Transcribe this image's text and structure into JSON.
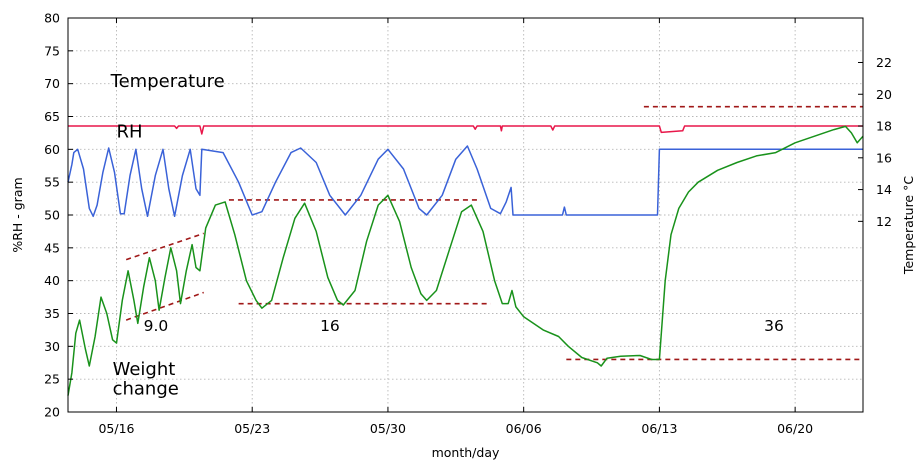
{
  "chart_data": {
    "type": "line",
    "xlabel": "month/day",
    "ylabel_left": "%RH - gram",
    "ylabel_right": "Temperature °C",
    "x_range_day": [
      13.5,
      54.5
    ],
    "x_ticks": [
      {
        "day": 16,
        "label": "05/16"
      },
      {
        "day": 23,
        "label": "05/23"
      },
      {
        "day": 30,
        "label": "05/30"
      },
      {
        "day": 37,
        "label": "06/06"
      },
      {
        "day": 44,
        "label": "06/13"
      },
      {
        "day": 51,
        "label": "06/20"
      }
    ],
    "ylim_left": [
      20,
      80
    ],
    "y_ticks_left": [
      20,
      25,
      30,
      35,
      40,
      45,
      50,
      55,
      60,
      65,
      70,
      75,
      80
    ],
    "ylim_right": [
      0,
      24.8
    ],
    "y_ticks_right": [
      12,
      14,
      16,
      18,
      20,
      22
    ],
    "grid": true,
    "annotations": [
      {
        "text": "Temperature",
        "day": 15.7,
        "y": 69.5
      },
      {
        "text": "RH",
        "day": 16.0,
        "y": 61.8
      },
      {
        "text": "Weight",
        "day": 15.8,
        "y": 25.6
      },
      {
        "text": "change",
        "day": 15.8,
        "y": 22.7
      },
      {
        "text": "9.0",
        "day": 17.4,
        "y": 32.3
      },
      {
        "text": "16",
        "day": 26.5,
        "y": 32.3
      },
      {
        "text": "36",
        "day": 49.4,
        "y": 32.3
      }
    ],
    "reference_lines": [
      {
        "name": "upper envelope",
        "points": [
          [
            16.5,
            43.2
          ],
          [
            20.5,
            47.2
          ]
        ]
      },
      {
        "name": "lower envelope",
        "points": [
          [
            16.5,
            34.0
          ],
          [
            20.5,
            38.2
          ]
        ]
      },
      {
        "name": "RH peak level",
        "points": [
          [
            21.8,
            52.3
          ],
          [
            34.8,
            52.3
          ]
        ]
      },
      {
        "name": "weight trough level",
        "points": [
          [
            22.3,
            36.5
          ],
          [
            35.3,
            36.5
          ]
        ]
      },
      {
        "name": "high temperature level",
        "points": [
          [
            43.2,
            66.5
          ],
          [
            54.5,
            66.5
          ]
        ]
      },
      {
        "name": "low weight level",
        "points": [
          [
            39.2,
            28.0
          ],
          [
            54.5,
            28.0
          ]
        ]
      }
    ],
    "series": [
      {
        "name": "Temperature",
        "axis": "right",
        "color": "#e8174a",
        "points": [
          [
            13.5,
            18.0
          ],
          [
            19.0,
            18.0
          ],
          [
            19.1,
            17.85
          ],
          [
            19.2,
            18.0
          ],
          [
            20.3,
            18.0
          ],
          [
            20.4,
            17.5
          ],
          [
            20.5,
            18.0
          ],
          [
            34.4,
            18.0
          ],
          [
            34.5,
            17.8
          ],
          [
            34.6,
            18.0
          ],
          [
            35.8,
            18.0
          ],
          [
            35.85,
            17.7
          ],
          [
            35.9,
            18.0
          ],
          [
            38.4,
            18.0
          ],
          [
            38.5,
            17.75
          ],
          [
            38.6,
            18.0
          ],
          [
            44.0,
            18.0
          ],
          [
            44.1,
            17.6
          ],
          [
            45.2,
            17.7
          ],
          [
            45.3,
            18.0
          ],
          [
            54.5,
            18.0
          ]
        ]
      },
      {
        "name": "RH",
        "axis": "left",
        "color": "#3a62d8",
        "points": [
          [
            13.5,
            55.0
          ],
          [
            13.7,
            57.7
          ],
          [
            13.8,
            59.5
          ],
          [
            14.0,
            60.0
          ],
          [
            14.3,
            57.0
          ],
          [
            14.6,
            51.0
          ],
          [
            14.8,
            49.8
          ],
          [
            15.0,
            51.5
          ],
          [
            15.3,
            56.5
          ],
          [
            15.6,
            60.2
          ],
          [
            15.9,
            56.5
          ],
          [
            16.2,
            50.2
          ],
          [
            16.4,
            50.2
          ],
          [
            16.7,
            56.0
          ],
          [
            17.0,
            60.0
          ],
          [
            17.3,
            54.0
          ],
          [
            17.6,
            49.8
          ],
          [
            18.0,
            56.0
          ],
          [
            18.4,
            60.0
          ],
          [
            18.7,
            54.0
          ],
          [
            19.0,
            49.8
          ],
          [
            19.4,
            56.0
          ],
          [
            19.8,
            60.0
          ],
          [
            20.1,
            54.0
          ],
          [
            20.3,
            53.0
          ],
          [
            20.4,
            60.0
          ],
          [
            21.5,
            59.5
          ],
          [
            22.3,
            55.0
          ],
          [
            23.0,
            50.0
          ],
          [
            23.5,
            50.5
          ],
          [
            24.2,
            55.0
          ],
          [
            25.0,
            59.5
          ],
          [
            25.5,
            60.2
          ],
          [
            26.3,
            58.0
          ],
          [
            27.0,
            53.0
          ],
          [
            27.8,
            50.0
          ],
          [
            28.6,
            53.0
          ],
          [
            29.5,
            58.5
          ],
          [
            30.0,
            60.0
          ],
          [
            30.8,
            57.0
          ],
          [
            31.6,
            51.0
          ],
          [
            32.0,
            50.0
          ],
          [
            32.8,
            53.0
          ],
          [
            33.5,
            58.5
          ],
          [
            34.1,
            60.5
          ],
          [
            34.6,
            57.0
          ],
          [
            35.3,
            51.0
          ],
          [
            35.8,
            50.2
          ],
          [
            36.1,
            52.0
          ],
          [
            36.35,
            54.2
          ],
          [
            36.45,
            50.0
          ],
          [
            36.6,
            50.0
          ],
          [
            39.0,
            50.0
          ],
          [
            39.1,
            51.2
          ],
          [
            39.2,
            50.0
          ],
          [
            43.9,
            50.0
          ],
          [
            44.0,
            60.0
          ],
          [
            54.5,
            60.0
          ]
        ]
      },
      {
        "name": "Weight change",
        "axis": "left",
        "color": "#19921b",
        "points": [
          [
            13.5,
            22.5
          ],
          [
            13.7,
            26.0
          ],
          [
            13.9,
            32.0
          ],
          [
            14.1,
            34.0
          ],
          [
            14.4,
            29.5
          ],
          [
            14.6,
            27.0
          ],
          [
            14.9,
            31.5
          ],
          [
            15.2,
            37.5
          ],
          [
            15.5,
            35.0
          ],
          [
            15.8,
            31.0
          ],
          [
            16.0,
            30.5
          ],
          [
            16.3,
            37.0
          ],
          [
            16.6,
            41.5
          ],
          [
            16.9,
            37.0
          ],
          [
            17.1,
            33.5
          ],
          [
            17.4,
            39.0
          ],
          [
            17.7,
            43.5
          ],
          [
            18.0,
            40.0
          ],
          [
            18.2,
            35.5
          ],
          [
            18.5,
            40.5
          ],
          [
            18.8,
            45.0
          ],
          [
            19.1,
            41.5
          ],
          [
            19.3,
            36.5
          ],
          [
            19.6,
            41.5
          ],
          [
            19.9,
            45.5
          ],
          [
            20.1,
            42.0
          ],
          [
            20.3,
            41.5
          ],
          [
            20.6,
            48.0
          ],
          [
            21.1,
            51.5
          ],
          [
            21.6,
            52.0
          ],
          [
            22.1,
            47.0
          ],
          [
            22.7,
            40.0
          ],
          [
            23.2,
            37.0
          ],
          [
            23.5,
            35.8
          ],
          [
            24.0,
            37.0
          ],
          [
            24.6,
            43.5
          ],
          [
            25.2,
            49.5
          ],
          [
            25.7,
            51.8
          ],
          [
            26.3,
            47.5
          ],
          [
            26.9,
            40.5
          ],
          [
            27.4,
            37.0
          ],
          [
            27.7,
            36.3
          ],
          [
            28.3,
            38.5
          ],
          [
            28.9,
            46.0
          ],
          [
            29.5,
            51.5
          ],
          [
            30.0,
            53.0
          ],
          [
            30.6,
            49.0
          ],
          [
            31.2,
            42.0
          ],
          [
            31.7,
            38.0
          ],
          [
            32.0,
            37.0
          ],
          [
            32.5,
            38.5
          ],
          [
            33.2,
            45.0
          ],
          [
            33.8,
            50.5
          ],
          [
            34.3,
            51.5
          ],
          [
            34.9,
            47.5
          ],
          [
            35.5,
            40.0
          ],
          [
            35.9,
            36.5
          ],
          [
            36.2,
            36.5
          ],
          [
            36.4,
            38.5
          ],
          [
            36.6,
            36.0
          ],
          [
            37.0,
            34.5
          ],
          [
            38.0,
            32.5
          ],
          [
            38.8,
            31.5
          ],
          [
            39.3,
            30.0
          ],
          [
            40.0,
            28.3
          ],
          [
            40.8,
            27.5
          ],
          [
            41.0,
            27.0
          ],
          [
            41.3,
            28.2
          ],
          [
            42.0,
            28.5
          ],
          [
            43.0,
            28.6
          ],
          [
            43.6,
            28.0
          ],
          [
            44.0,
            28.0
          ],
          [
            44.3,
            40.0
          ],
          [
            44.6,
            47.0
          ],
          [
            45.0,
            51.0
          ],
          [
            45.5,
            53.5
          ],
          [
            46.0,
            55.0
          ],
          [
            47.0,
            56.8
          ],
          [
            48.0,
            58.0
          ],
          [
            49.0,
            59.0
          ],
          [
            50.0,
            59.5
          ],
          [
            51.0,
            61.0
          ],
          [
            52.0,
            62.0
          ],
          [
            53.0,
            63.0
          ],
          [
            53.6,
            63.5
          ],
          [
            53.9,
            62.5
          ],
          [
            54.2,
            61.0
          ],
          [
            54.5,
            62.0
          ]
        ]
      }
    ]
  }
}
